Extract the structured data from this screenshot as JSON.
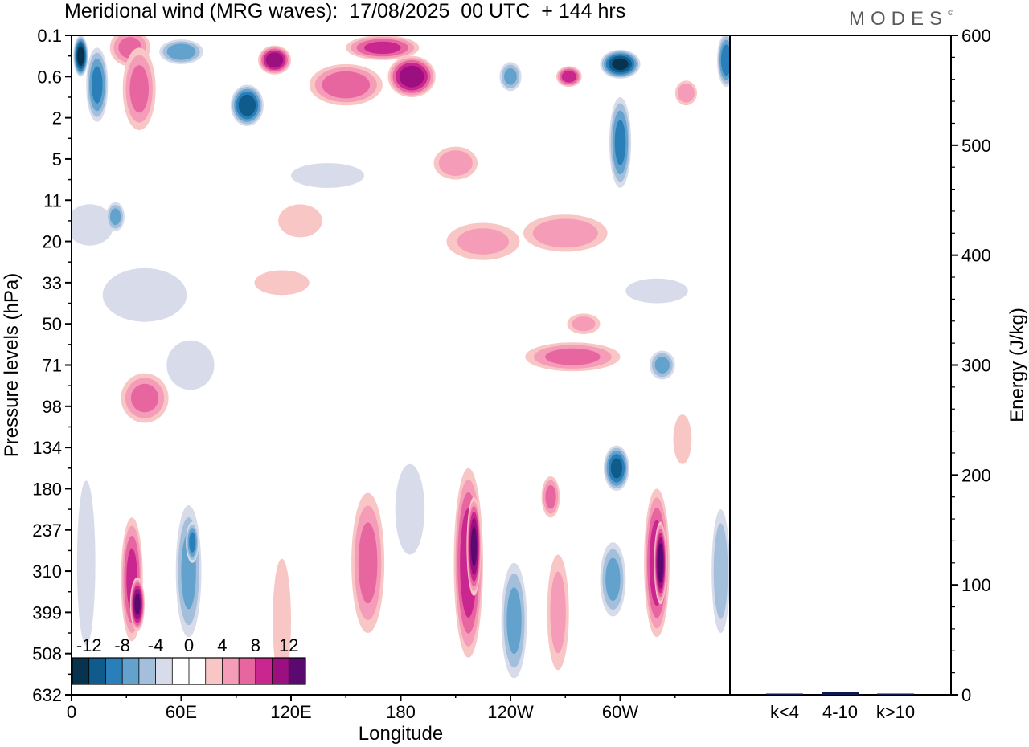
{
  "header": {
    "title": "Meridional wind (MRG waves):  17/08/2025  00 UTC  + 144 hrs",
    "logo": "MODES",
    "logo_mark": "©"
  },
  "chart_data": [
    {
      "type": "heatmap",
      "title": "Meridional wind (MRG waves)",
      "xlabel": "Longitude",
      "ylabel": "Pressure levels (hPa)",
      "x_ticks": [
        "0",
        "60E",
        "120E",
        "180",
        "120W",
        "60W"
      ],
      "y_ticks": [
        "0.1",
        "0.6",
        "2",
        "5",
        "11",
        "20",
        "33",
        "50",
        "71",
        "98",
        "134",
        "180",
        "237",
        "310",
        "399",
        "508",
        "632"
      ],
      "xlim": [
        0,
        360
      ],
      "colorbar": {
        "labels": [
          "-12",
          "-8",
          "-4",
          "0",
          "4",
          "8",
          "12"
        ],
        "colors": [
          "#08334e",
          "#0f5c8c",
          "#2a7fb8",
          "#63a2cd",
          "#a3bfdc",
          "#d8dbe9",
          "#ffffff",
          "#ffffff",
          "#f8c6c4",
          "#f49cb8",
          "#e8669f",
          "#c9268f",
          "#9b0f80",
          "#5a0a6e"
        ]
      },
      "blobs": [
        {
          "lon": 5,
          "lev": 0.5,
          "w": 8,
          "h": 1.0,
          "v": -13
        },
        {
          "lon": 14,
          "lev": 1.2,
          "w": 12,
          "h": 1.8,
          "v": -8
        },
        {
          "lon": 32,
          "lev": 0.3,
          "w": 22,
          "h": 0.9,
          "v": 6
        },
        {
          "lon": 37,
          "lev": 1.3,
          "w": 18,
          "h": 2.0,
          "v": 6
        },
        {
          "lon": 60,
          "lev": 0.4,
          "w": 24,
          "h": 0.6,
          "v": -7
        },
        {
          "lon": 96,
          "lev": 1.7,
          "w": 18,
          "h": 1.0,
          "v": -11
        },
        {
          "lon": 111,
          "lev": 0.6,
          "w": 18,
          "h": 0.7,
          "v": 11
        },
        {
          "lon": 150,
          "lev": 1.2,
          "w": 40,
          "h": 1.0,
          "v": 7
        },
        {
          "lon": 170,
          "lev": 0.3,
          "w": 40,
          "h": 0.6,
          "v": 8
        },
        {
          "lon": 186,
          "lev": 1.0,
          "w": 26,
          "h": 1.0,
          "v": 11
        },
        {
          "lon": 210,
          "lev": 3.1,
          "w": 24,
          "h": 0.8,
          "v": 5
        },
        {
          "lon": 225,
          "lev": 5.0,
          "w": 40,
          "h": 0.9,
          "v": 4
        },
        {
          "lon": 240,
          "lev": 1.0,
          "w": 12,
          "h": 0.7,
          "v": -6
        },
        {
          "lon": 270,
          "lev": 4.8,
          "w": 46,
          "h": 0.9,
          "v": 5
        },
        {
          "lon": 272,
          "lev": 1.0,
          "w": 14,
          "h": 0.5,
          "v": 9
        },
        {
          "lon": 300,
          "lev": 0.7,
          "w": 22,
          "h": 0.7,
          "v": -12
        },
        {
          "lon": 300,
          "lev": 2.6,
          "w": 12,
          "h": 2.2,
          "v": -8
        },
        {
          "lon": 336,
          "lev": 1.4,
          "w": 12,
          "h": 0.6,
          "v": 5
        },
        {
          "lon": 358,
          "lev": 0.6,
          "w": 10,
          "h": 1.3,
          "v": -9
        },
        {
          "lon": 10,
          "lev": 4.6,
          "w": 26,
          "h": 1.0,
          "v": -3
        },
        {
          "lon": 24,
          "lev": 4.4,
          "w": 10,
          "h": 0.7,
          "v": -6
        },
        {
          "lon": 40,
          "lev": 6.3,
          "w": 46,
          "h": 1.3,
          "v": -3
        },
        {
          "lon": 40,
          "lev": 8.8,
          "w": 26,
          "h": 1.2,
          "v": 6
        },
        {
          "lon": 65,
          "lev": 8.0,
          "w": 26,
          "h": 1.2,
          "v": -3
        },
        {
          "lon": 115,
          "lev": 6.0,
          "w": 30,
          "h": 0.6,
          "v": 3
        },
        {
          "lon": 125,
          "lev": 4.5,
          "w": 24,
          "h": 0.8,
          "v": 3
        },
        {
          "lon": 140,
          "lev": 3.4,
          "w": 40,
          "h": 0.6,
          "v": -3
        },
        {
          "lon": 280,
          "lev": 7.0,
          "w": 18,
          "h": 0.5,
          "v": 4
        },
        {
          "lon": 320,
          "lev": 6.2,
          "w": 34,
          "h": 0.6,
          "v": -3
        },
        {
          "lon": 274,
          "lev": 7.8,
          "w": 52,
          "h": 0.7,
          "v": 6
        },
        {
          "lon": 323,
          "lev": 8.0,
          "w": 14,
          "h": 0.7,
          "v": -6
        },
        {
          "lon": 33,
          "lev": 13.2,
          "w": 12,
          "h": 3.0,
          "v": 8
        },
        {
          "lon": 36,
          "lev": 13.8,
          "w": 8,
          "h": 1.3,
          "v": 12
        },
        {
          "lon": 64,
          "lev": 13.0,
          "w": 14,
          "h": 3.2,
          "v": -6
        },
        {
          "lon": 66,
          "lev": 12.3,
          "w": 7,
          "h": 1.0,
          "v": -8
        },
        {
          "lon": 8,
          "lev": 12.8,
          "w": 10,
          "h": 4.0,
          "v": -3
        },
        {
          "lon": 115,
          "lev": 14.2,
          "w": 10,
          "h": 3.0,
          "v": 3
        },
        {
          "lon": 162,
          "lev": 12.8,
          "w": 18,
          "h": 3.4,
          "v": 6
        },
        {
          "lon": 185,
          "lev": 11.5,
          "w": 16,
          "h": 2.2,
          "v": -3
        },
        {
          "lon": 217,
          "lev": 12.8,
          "w": 16,
          "h": 4.6,
          "v": 9
        },
        {
          "lon": 220,
          "lev": 12.4,
          "w": 8,
          "h": 2.4,
          "v": 12
        },
        {
          "lon": 242,
          "lev": 14.2,
          "w": 14,
          "h": 2.8,
          "v": -6
        },
        {
          "lon": 262,
          "lev": 11.2,
          "w": 10,
          "h": 1.0,
          "v": 6
        },
        {
          "lon": 266,
          "lev": 14.0,
          "w": 12,
          "h": 2.8,
          "v": 4
        },
        {
          "lon": 298,
          "lev": 10.5,
          "w": 14,
          "h": 1.1,
          "v": -10
        },
        {
          "lon": 296,
          "lev": 13.2,
          "w": 14,
          "h": 1.8,
          "v": -6
        },
        {
          "lon": 320,
          "lev": 12.8,
          "w": 14,
          "h": 3.6,
          "v": 9
        },
        {
          "lon": 322,
          "lev": 12.8,
          "w": 7,
          "h": 2.0,
          "v": 13
        },
        {
          "lon": 355,
          "lev": 13.0,
          "w": 10,
          "h": 3.0,
          "v": -5
        },
        {
          "lon": 334,
          "lev": 9.8,
          "w": 10,
          "h": 1.2,
          "v": 3
        }
      ]
    },
    {
      "type": "bar",
      "ylabel": "Energy (J/kg)",
      "categories": [
        "k<4",
        "4-10",
        "k>10"
      ],
      "values": [
        0.3,
        2.5,
        0.2
      ],
      "ylim": [
        0,
        600
      ],
      "y_ticks": [
        "0",
        "100",
        "200",
        "300",
        "400",
        "500",
        "600"
      ]
    }
  ]
}
